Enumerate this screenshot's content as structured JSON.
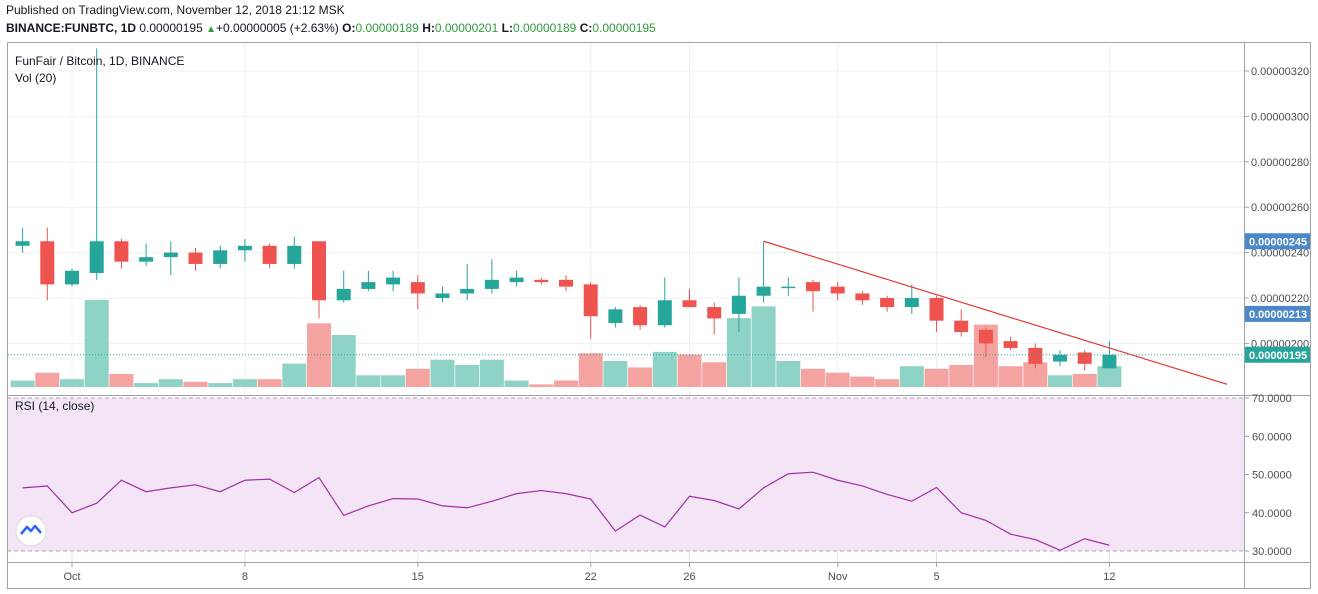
{
  "header": {
    "published": "Published on TradingView.com, November 12, 2018 21:12 MSK",
    "symbol": "BINANCE:FUNBTC, 1D",
    "last": "0.00000195",
    "change": "+0.00000005 (+2.63%)",
    "o_label": "O:",
    "o_val": "0.00000189",
    "h_label": "H:",
    "h_val": "0.00000201",
    "l_label": "L:",
    "l_val": "0.00000189",
    "c_label": "C:",
    "c_val": "0.00000195"
  },
  "chart_data": [
    {
      "type": "candlestick",
      "title": "FunFair / Bitcoin, 1D, BINANCE",
      "subtitle": "Vol (20)",
      "x_tick_labels": [
        "Oct",
        "8",
        "15",
        "22",
        "26",
        "Nov",
        "5",
        "12"
      ],
      "y_tick_labels": [
        "0.00000320",
        "0.00000300",
        "0.00000280",
        "0.00000260",
        "0.00000240",
        "0.00000220",
        "0.00000200"
      ],
      "ylim": [
        1.8e-06,
        3.3e-06
      ],
      "price_badges": [
        {
          "label": "0.00000245",
          "value": 2.45e-06,
          "color": "#4a88c8"
        },
        {
          "label": "0.00000213",
          "value": 2.13e-06,
          "color": "#4a88c8"
        },
        {
          "label": "0.00000195",
          "value": 1.95e-06,
          "color": "#26a69a"
        }
      ],
      "candles": [
        {
          "day": -2,
          "o": 243,
          "h": 251,
          "l": 240,
          "c": 245
        },
        {
          "day": -1,
          "o": 245,
          "h": 251,
          "l": 219,
          "c": 226
        },
        {
          "day": 0,
          "o": 226,
          "h": 233,
          "l": 225,
          "c": 232
        },
        {
          "day": 1,
          "o": 231,
          "h": 330,
          "l": 228,
          "c": 245
        },
        {
          "day": 2,
          "o": 245,
          "h": 246,
          "l": 233,
          "c": 236
        },
        {
          "day": 3,
          "o": 236,
          "h": 244,
          "l": 234,
          "c": 238
        },
        {
          "day": 4,
          "o": 238,
          "h": 245,
          "l": 230,
          "c": 240
        },
        {
          "day": 5,
          "o": 240,
          "h": 242,
          "l": 232,
          "c": 235
        },
        {
          "day": 6,
          "o": 235,
          "h": 243,
          "l": 233,
          "c": 241
        },
        {
          "day": 7,
          "o": 241,
          "h": 246,
          "l": 236,
          "c": 243
        },
        {
          "day": 8,
          "o": 243,
          "h": 244,
          "l": 233,
          "c": 235
        },
        {
          "day": 9,
          "o": 235,
          "h": 247,
          "l": 233,
          "c": 243
        },
        {
          "day": 10,
          "o": 245,
          "h": 245,
          "l": 211,
          "c": 219
        },
        {
          "day": 11,
          "o": 219,
          "h": 232,
          "l": 218,
          "c": 224
        },
        {
          "day": 12,
          "o": 224,
          "h": 232,
          "l": 223,
          "c": 227
        },
        {
          "day": 13,
          "o": 226,
          "h": 232,
          "l": 223,
          "c": 229
        },
        {
          "day": 14,
          "o": 227,
          "h": 230,
          "l": 215,
          "c": 222
        },
        {
          "day": 15,
          "o": 220,
          "h": 225,
          "l": 218,
          "c": 222
        },
        {
          "day": 16,
          "o": 222,
          "h": 235,
          "l": 219,
          "c": 224
        },
        {
          "day": 17,
          "o": 224,
          "h": 237,
          "l": 222,
          "c": 228
        },
        {
          "day": 18,
          "o": 227,
          "h": 232,
          "l": 225,
          "c": 229
        },
        {
          "day": 19,
          "o": 228,
          "h": 229,
          "l": 226,
          "c": 227
        },
        {
          "day": 20,
          "o": 228,
          "h": 230,
          "l": 223,
          "c": 225
        },
        {
          "day": 21,
          "o": 226,
          "h": 227,
          "l": 202,
          "c": 212
        },
        {
          "day": 22,
          "o": 209,
          "h": 216,
          "l": 207,
          "c": 215
        },
        {
          "day": 23,
          "o": 216,
          "h": 217,
          "l": 206,
          "c": 208
        },
        {
          "day": 24,
          "o": 208,
          "h": 229,
          "l": 207,
          "c": 219
        },
        {
          "day": 25,
          "o": 219,
          "h": 224,
          "l": 216,
          "c": 216
        },
        {
          "day": 26,
          "o": 216,
          "h": 218,
          "l": 204,
          "c": 211
        },
        {
          "day": 27,
          "o": 213,
          "h": 229,
          "l": 205,
          "c": 221
        },
        {
          "day": 28,
          "o": 221,
          "h": 245,
          "l": 218,
          "c": 225
        },
        {
          "day": 29,
          "o": 225,
          "h": 229,
          "l": 221,
          "c": 225
        },
        {
          "day": 30,
          "o": 227,
          "h": 228,
          "l": 214,
          "c": 223
        },
        {
          "day": 31,
          "o": 225,
          "h": 227,
          "l": 219,
          "c": 222
        },
        {
          "day": 32,
          "o": 222,
          "h": 223,
          "l": 217,
          "c": 219
        },
        {
          "day": 33,
          "o": 220,
          "h": 221,
          "l": 214,
          "c": 216
        },
        {
          "day": 34,
          "o": 216,
          "h": 226,
          "l": 213,
          "c": 220
        },
        {
          "day": 35,
          "o": 220,
          "h": 221,
          "l": 205,
          "c": 210
        },
        {
          "day": 36,
          "o": 210,
          "h": 215,
          "l": 203,
          "c": 205
        },
        {
          "day": 37,
          "o": 206,
          "h": 207,
          "l": 194,
          "c": 200
        },
        {
          "day": 38,
          "o": 201,
          "h": 203,
          "l": 197,
          "c": 198
        },
        {
          "day": 39,
          "o": 198,
          "h": 200,
          "l": 189,
          "c": 191
        },
        {
          "day": 40,
          "o": 192,
          "h": 197,
          "l": 190,
          "c": 195
        },
        {
          "day": 41,
          "o": 196,
          "h": 197,
          "l": 188,
          "c": 191
        },
        {
          "day": 42,
          "o": 189,
          "h": 201,
          "l": 189,
          "c": 195
        }
      ],
      "volume_relative": [
        0.05,
        0.11,
        0.06,
        0.67,
        0.1,
        0.03,
        0.06,
        0.04,
        0.03,
        0.06,
        0.06,
        0.18,
        0.49,
        0.4,
        0.09,
        0.09,
        0.14,
        0.21,
        0.17,
        0.21,
        0.05,
        0.02,
        0.05,
        0.26,
        0.2,
        0.15,
        0.27,
        0.25,
        0.19,
        0.53,
        0.62,
        0.2,
        0.14,
        0.11,
        0.08,
        0.06,
        0.16,
        0.14,
        0.17,
        0.48,
        0.16,
        0.19,
        0.09,
        0.1,
        0.16
      ],
      "trendline": {
        "start": {
          "day": 28,
          "value": 245
        },
        "end": {
          "day": 47,
          "value": 182
        },
        "color": "#e53935"
      }
    },
    {
      "type": "line",
      "title": "RSI (14, close)",
      "y_tick_labels": [
        "70.0000",
        "60.0000",
        "50.0000",
        "40.0000",
        "30.0000"
      ],
      "ylim": [
        20,
        70
      ],
      "band": [
        30,
        70
      ],
      "x": [
        -2,
        -1,
        0,
        1,
        2,
        3,
        4,
        5,
        6,
        7,
        8,
        9,
        10,
        11,
        12,
        13,
        14,
        15,
        16,
        17,
        18,
        19,
        20,
        21,
        22,
        23,
        24,
        25,
        26,
        27,
        28,
        29,
        30,
        31,
        32,
        33,
        34,
        35,
        36,
        37,
        38,
        39,
        40,
        41,
        42
      ],
      "values": [
        46.5,
        47,
        40,
        42.5,
        48.5,
        45.5,
        46.5,
        47.3,
        45.5,
        48.5,
        48.8,
        45.3,
        49.2,
        39.3,
        41.8,
        43.7,
        43.6,
        41.8,
        41.3,
        43,
        45,
        45.8,
        45,
        43.6,
        35.2,
        39.4,
        36.3,
        44.3,
        43.2,
        41,
        46.5,
        50.2,
        50.6,
        48.5,
        47,
        44.8,
        43,
        46.6,
        40,
        38,
        34.4,
        33,
        30.2,
        33.2,
        31.5
      ]
    }
  ],
  "colors": {
    "up": "#26a69a",
    "down": "#ef5350",
    "rsi_line": "#a12ea7",
    "rsi_band": "#f3e5f5"
  },
  "icons": {
    "watermark": "tradingview-logo-icon"
  }
}
